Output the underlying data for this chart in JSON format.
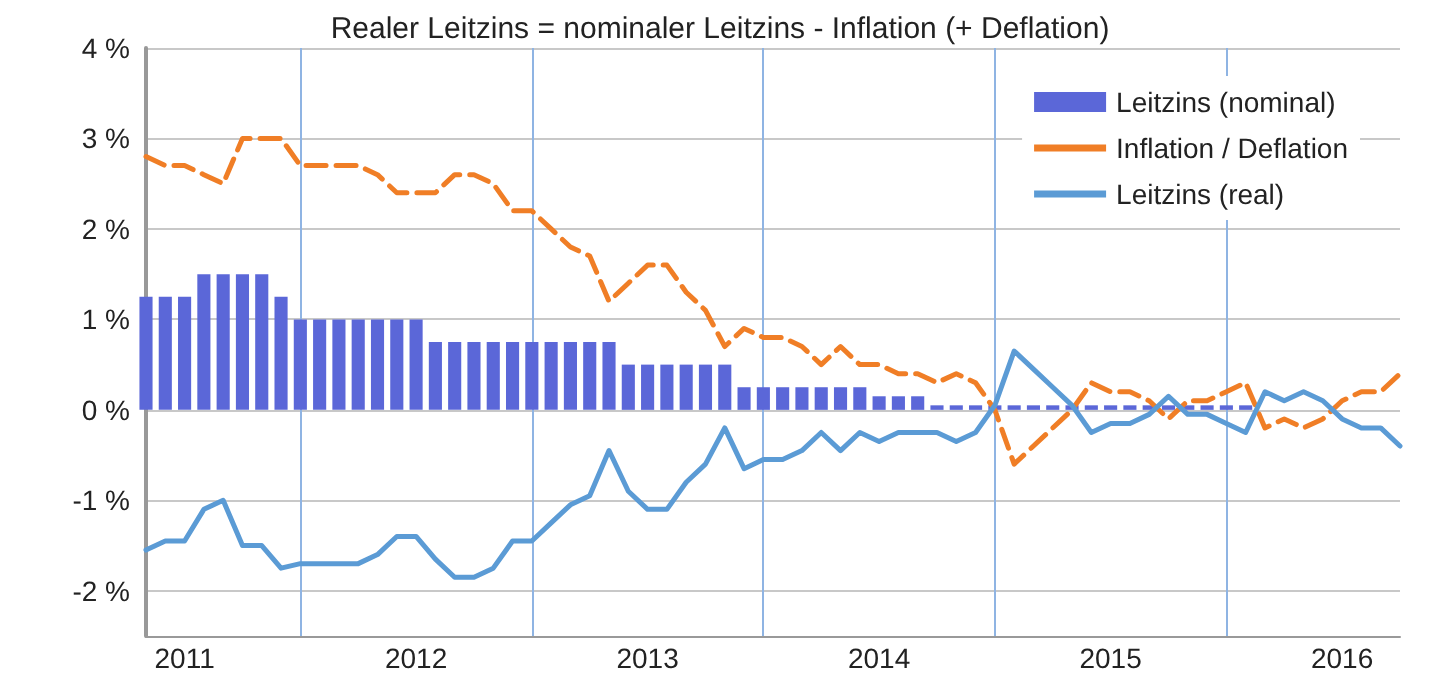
{
  "chart_data": {
    "type": "bar",
    "title": "Realer Leitzins = nominaler Leitzins - Inflation (+ Deflation)",
    "categories": [
      null,
      null,
      "2011",
      null,
      null,
      null,
      null,
      null,
      null,
      null,
      null,
      null,
      null,
      null,
      "2012",
      null,
      null,
      null,
      null,
      null,
      null,
      null,
      null,
      null,
      null,
      null,
      "2013",
      null,
      null,
      null,
      null,
      null,
      null,
      null,
      null,
      null,
      null,
      null,
      "2014",
      null,
      null,
      null,
      null,
      null,
      null,
      null,
      null,
      null,
      null,
      null,
      "2015",
      null,
      null,
      null,
      null,
      null,
      null,
      null,
      null,
      null,
      null,
      null,
      "2016",
      null,
      null,
      null
    ],
    "series": [
      {
        "name": "Leitzins (nominal)",
        "color": "#5b67d8",
        "values": [
          1.25,
          1.25,
          1.25,
          1.5,
          1.5,
          1.5,
          1.5,
          1.25,
          1.0,
          1.0,
          1.0,
          1.0,
          1.0,
          1.0,
          1.0,
          0.75,
          0.75,
          0.75,
          0.75,
          0.75,
          0.75,
          0.75,
          0.75,
          0.75,
          0.75,
          0.5,
          0.5,
          0.5,
          0.5,
          0.5,
          0.5,
          0.25,
          0.25,
          0.25,
          0.25,
          0.25,
          0.25,
          0.25,
          0.15,
          0.15,
          0.15,
          0.05,
          0.05,
          0.05,
          0.05,
          0.05,
          0.05,
          0.05,
          0.05,
          0.05,
          0.05,
          0.05,
          0.05,
          0.05,
          0.05,
          0.05,
          0.05,
          0.05,
          0,
          0,
          0,
          0,
          0,
          0,
          0,
          0
        ]
      },
      {
        "name": "Inflation / Deflation",
        "type": "line",
        "color": "#f07e26",
        "line_style": "dashed",
        "values": [
          2.8,
          2.7,
          2.7,
          2.6,
          2.5,
          3.0,
          3.0,
          3.0,
          2.7,
          2.7,
          2.7,
          2.7,
          2.6,
          2.4,
          2.4,
          2.4,
          2.6,
          2.6,
          2.5,
          2.2,
          2.2,
          2.0,
          1.8,
          1.7,
          1.2,
          1.4,
          1.6,
          1.6,
          1.3,
          1.1,
          0.7,
          0.9,
          0.8,
          0.8,
          0.7,
          0.5,
          0.7,
          0.5,
          0.5,
          0.4,
          0.4,
          0.3,
          0.4,
          0.3,
          0.0,
          -0.6,
          -0.4,
          -0.2,
          0.0,
          0.3,
          0.2,
          0.2,
          0.1,
          -0.1,
          0.1,
          0.1,
          0.2,
          0.3,
          -0.2,
          -0.1,
          -0.2,
          -0.1,
          0.1,
          0.2,
          0.2,
          0.4
        ]
      },
      {
        "name": "Leitzins (real)",
        "type": "line",
        "color": "#5b9bd5",
        "line_style": "solid",
        "values": [
          -1.55,
          -1.45,
          -1.45,
          -1.1,
          -1.0,
          -1.5,
          -1.5,
          -1.75,
          -1.7,
          -1.7,
          -1.7,
          -1.7,
          -1.6,
          -1.4,
          -1.4,
          -1.65,
          -1.85,
          -1.85,
          -1.75,
          -1.45,
          -1.45,
          -1.25,
          -1.05,
          -0.95,
          -0.45,
          -0.9,
          -1.1,
          -1.1,
          -0.8,
          -0.6,
          -0.2,
          -0.65,
          -0.55,
          -0.55,
          -0.45,
          -0.25,
          -0.45,
          -0.25,
          -0.35,
          -0.25,
          -0.25,
          -0.25,
          -0.35,
          -0.25,
          0.05,
          0.65,
          0.45,
          0.25,
          0.05,
          -0.25,
          -0.15,
          -0.15,
          -0.05,
          0.15,
          -0.05,
          -0.05,
          -0.15,
          -0.25,
          0.2,
          0.1,
          0.2,
          0.1,
          -0.1,
          -0.2,
          -0.2,
          -0.4
        ]
      }
    ],
    "ylim": [
      -2.5,
      4
    ],
    "yticks": [
      {
        "value": -2,
        "label": "-2 %"
      },
      {
        "value": -1,
        "label": "-1 %"
      },
      {
        "value": 0,
        "label": "0 %"
      },
      {
        "value": 1,
        "label": "1 %"
      },
      {
        "value": 2,
        "label": "2 %"
      },
      {
        "value": 3,
        "label": "3 %"
      },
      {
        "value": 4,
        "label": "4 %"
      }
    ],
    "grid": true,
    "legend": "top right",
    "marker": "none"
  }
}
